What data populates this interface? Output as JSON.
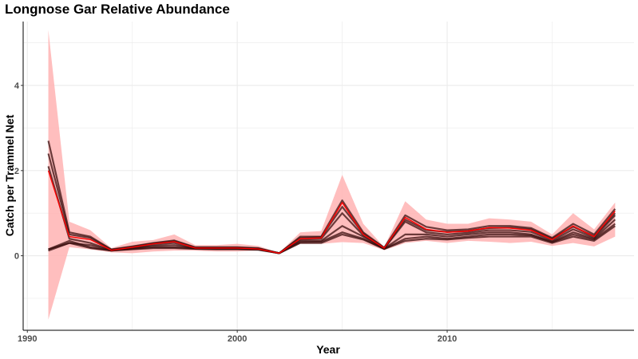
{
  "chart_data": {
    "type": "line",
    "title": "Longnose Gar Relative Abundance",
    "xlabel": "Year",
    "ylabel": "Catch per Trammel Net",
    "xlim": [
      1989.8,
      2018.9
    ],
    "ylim": [
      -1.75,
      5.5
    ],
    "x_ticks": [
      1990,
      2000,
      2010
    ],
    "y_ticks": [
      0,
      2,
      4
    ],
    "grid": true,
    "legend": "none",
    "colors": {
      "ribbon": "#ffb3b3",
      "estimate": "#ff0000",
      "draws": "#3a0d0d",
      "grid": "#ebebeb"
    },
    "x": [
      1991,
      1992,
      1993,
      1994,
      1995,
      1996,
      1997,
      1998,
      1999,
      2000,
      2001,
      2002,
      2003,
      2004,
      2005,
      2006,
      2007,
      2008,
      2009,
      2010,
      2011,
      2012,
      2013,
      2014,
      2015,
      2016,
      2017,
      2018
    ],
    "series": [
      {
        "role": "ribbon_upper",
        "values": [
          5.3,
          0.8,
          0.6,
          0.18,
          0.33,
          0.37,
          0.5,
          0.25,
          0.25,
          0.28,
          0.23,
          0.07,
          0.55,
          0.58,
          1.9,
          0.75,
          0.2,
          1.28,
          0.85,
          0.75,
          0.75,
          0.88,
          0.85,
          0.8,
          0.5,
          1.0,
          0.62,
          1.25
        ]
      },
      {
        "role": "ribbon_lower",
        "values": [
          -1.5,
          0.2,
          0.15,
          0.08,
          0.06,
          0.1,
          0.12,
          0.12,
          0.1,
          0.1,
          0.12,
          0.04,
          0.28,
          0.28,
          0.32,
          0.3,
          0.13,
          0.3,
          0.35,
          0.3,
          0.35,
          0.33,
          0.3,
          0.33,
          0.23,
          0.3,
          0.22,
          0.45
        ]
      },
      {
        "role": "estimate",
        "values": [
          2.0,
          0.45,
          0.38,
          0.13,
          0.2,
          0.28,
          0.33,
          0.18,
          0.18,
          0.18,
          0.16,
          0.06,
          0.4,
          0.42,
          1.25,
          0.5,
          0.18,
          0.9,
          0.62,
          0.55,
          0.58,
          0.66,
          0.65,
          0.6,
          0.38,
          0.7,
          0.45,
          1.05
        ]
      },
      {
        "role": "draw",
        "values": [
          2.7,
          0.55,
          0.45,
          0.15,
          0.22,
          0.3,
          0.36,
          0.2,
          0.2,
          0.2,
          0.18,
          0.06,
          0.45,
          0.45,
          1.3,
          0.55,
          0.19,
          0.95,
          0.68,
          0.6,
          0.62,
          0.7,
          0.7,
          0.65,
          0.42,
          0.75,
          0.5,
          1.1
        ]
      },
      {
        "role": "draw",
        "values": [
          2.4,
          0.5,
          0.42,
          0.14,
          0.21,
          0.29,
          0.34,
          0.19,
          0.19,
          0.19,
          0.17,
          0.06,
          0.42,
          0.44,
          1.15,
          0.52,
          0.18,
          0.85,
          0.6,
          0.56,
          0.58,
          0.65,
          0.66,
          0.62,
          0.4,
          0.68,
          0.46,
          1.0
        ]
      },
      {
        "role": "draw",
        "values": [
          2.1,
          0.4,
          0.3,
          0.13,
          0.18,
          0.26,
          0.3,
          0.17,
          0.18,
          0.17,
          0.16,
          0.06,
          0.38,
          0.4,
          1.0,
          0.48,
          0.17,
          0.8,
          0.55,
          0.5,
          0.54,
          0.6,
          0.6,
          0.56,
          0.36,
          0.62,
          0.43,
          0.95
        ]
      },
      {
        "role": "draw",
        "values": [
          0.15,
          0.3,
          0.25,
          0.13,
          0.18,
          0.23,
          0.25,
          0.17,
          0.17,
          0.17,
          0.15,
          0.06,
          0.35,
          0.35,
          0.7,
          0.45,
          0.17,
          0.5,
          0.5,
          0.45,
          0.5,
          0.55,
          0.55,
          0.5,
          0.33,
          0.55,
          0.4,
          0.85
        ]
      },
      {
        "role": "draw",
        "values": [
          0.15,
          0.35,
          0.2,
          0.12,
          0.16,
          0.2,
          0.2,
          0.17,
          0.16,
          0.16,
          0.15,
          0.06,
          0.32,
          0.33,
          0.55,
          0.4,
          0.16,
          0.4,
          0.45,
          0.4,
          0.45,
          0.5,
          0.5,
          0.48,
          0.32,
          0.5,
          0.38,
          0.75
        ]
      },
      {
        "role": "draw",
        "values": [
          0.12,
          0.3,
          0.18,
          0.12,
          0.15,
          0.18,
          0.18,
          0.16,
          0.15,
          0.15,
          0.14,
          0.06,
          0.3,
          0.3,
          0.5,
          0.38,
          0.16,
          0.35,
          0.4,
          0.38,
          0.42,
          0.45,
          0.45,
          0.45,
          0.3,
          0.45,
          0.35,
          0.7
        ]
      }
    ]
  }
}
